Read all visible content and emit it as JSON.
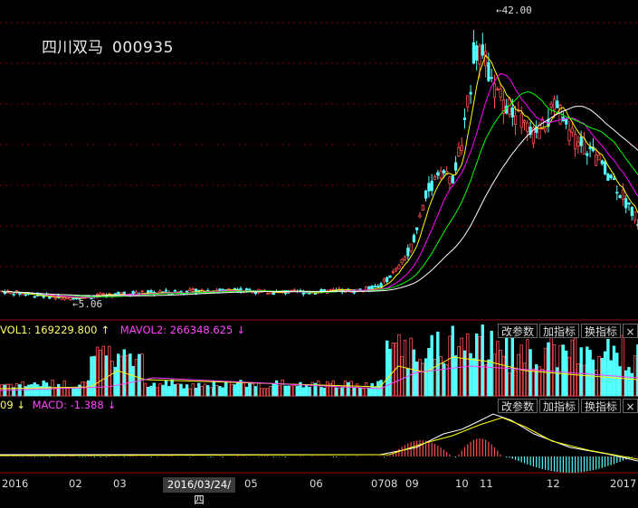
{
  "stock": {
    "name": "四川双马",
    "code": "000935"
  },
  "price_marks": {
    "high": "42.00",
    "low": "5.06"
  },
  "volume_panel": {
    "vol1_label": "VOL1: 169229.800",
    "vol1_arrow": "↑",
    "mavol2_label": "MAVOL2: 266348.625",
    "mavol2_arrow": "↓",
    "buttons": [
      "改参数",
      "加指标",
      "换指标",
      "×"
    ]
  },
  "macd_panel": {
    "dea_fragment": "09",
    "dea_arrow": "↓",
    "macd_label": "MACD: -1.388",
    "macd_arrow": "↓",
    "buttons": [
      "改参数",
      "加指标",
      "换指标",
      "×"
    ]
  },
  "x_axis": {
    "labels": [
      "2016",
      "02",
      "03",
      "05",
      "06",
      "0708",
      "09",
      "10",
      "11",
      "12",
      "2017"
    ],
    "cursor_date": "2016/03/24/四"
  },
  "colors": {
    "up": "#ff5050",
    "down": "#54ffff",
    "ma5": "#ffffff",
    "ma10": "#ffff00",
    "ma20": "#ff00ff",
    "ma30": "#00ff00",
    "ma60": "#ffffff",
    "grid": "#800000",
    "vol_label": "#ffff66",
    "mavol_label": "#ff44ff"
  }
}
